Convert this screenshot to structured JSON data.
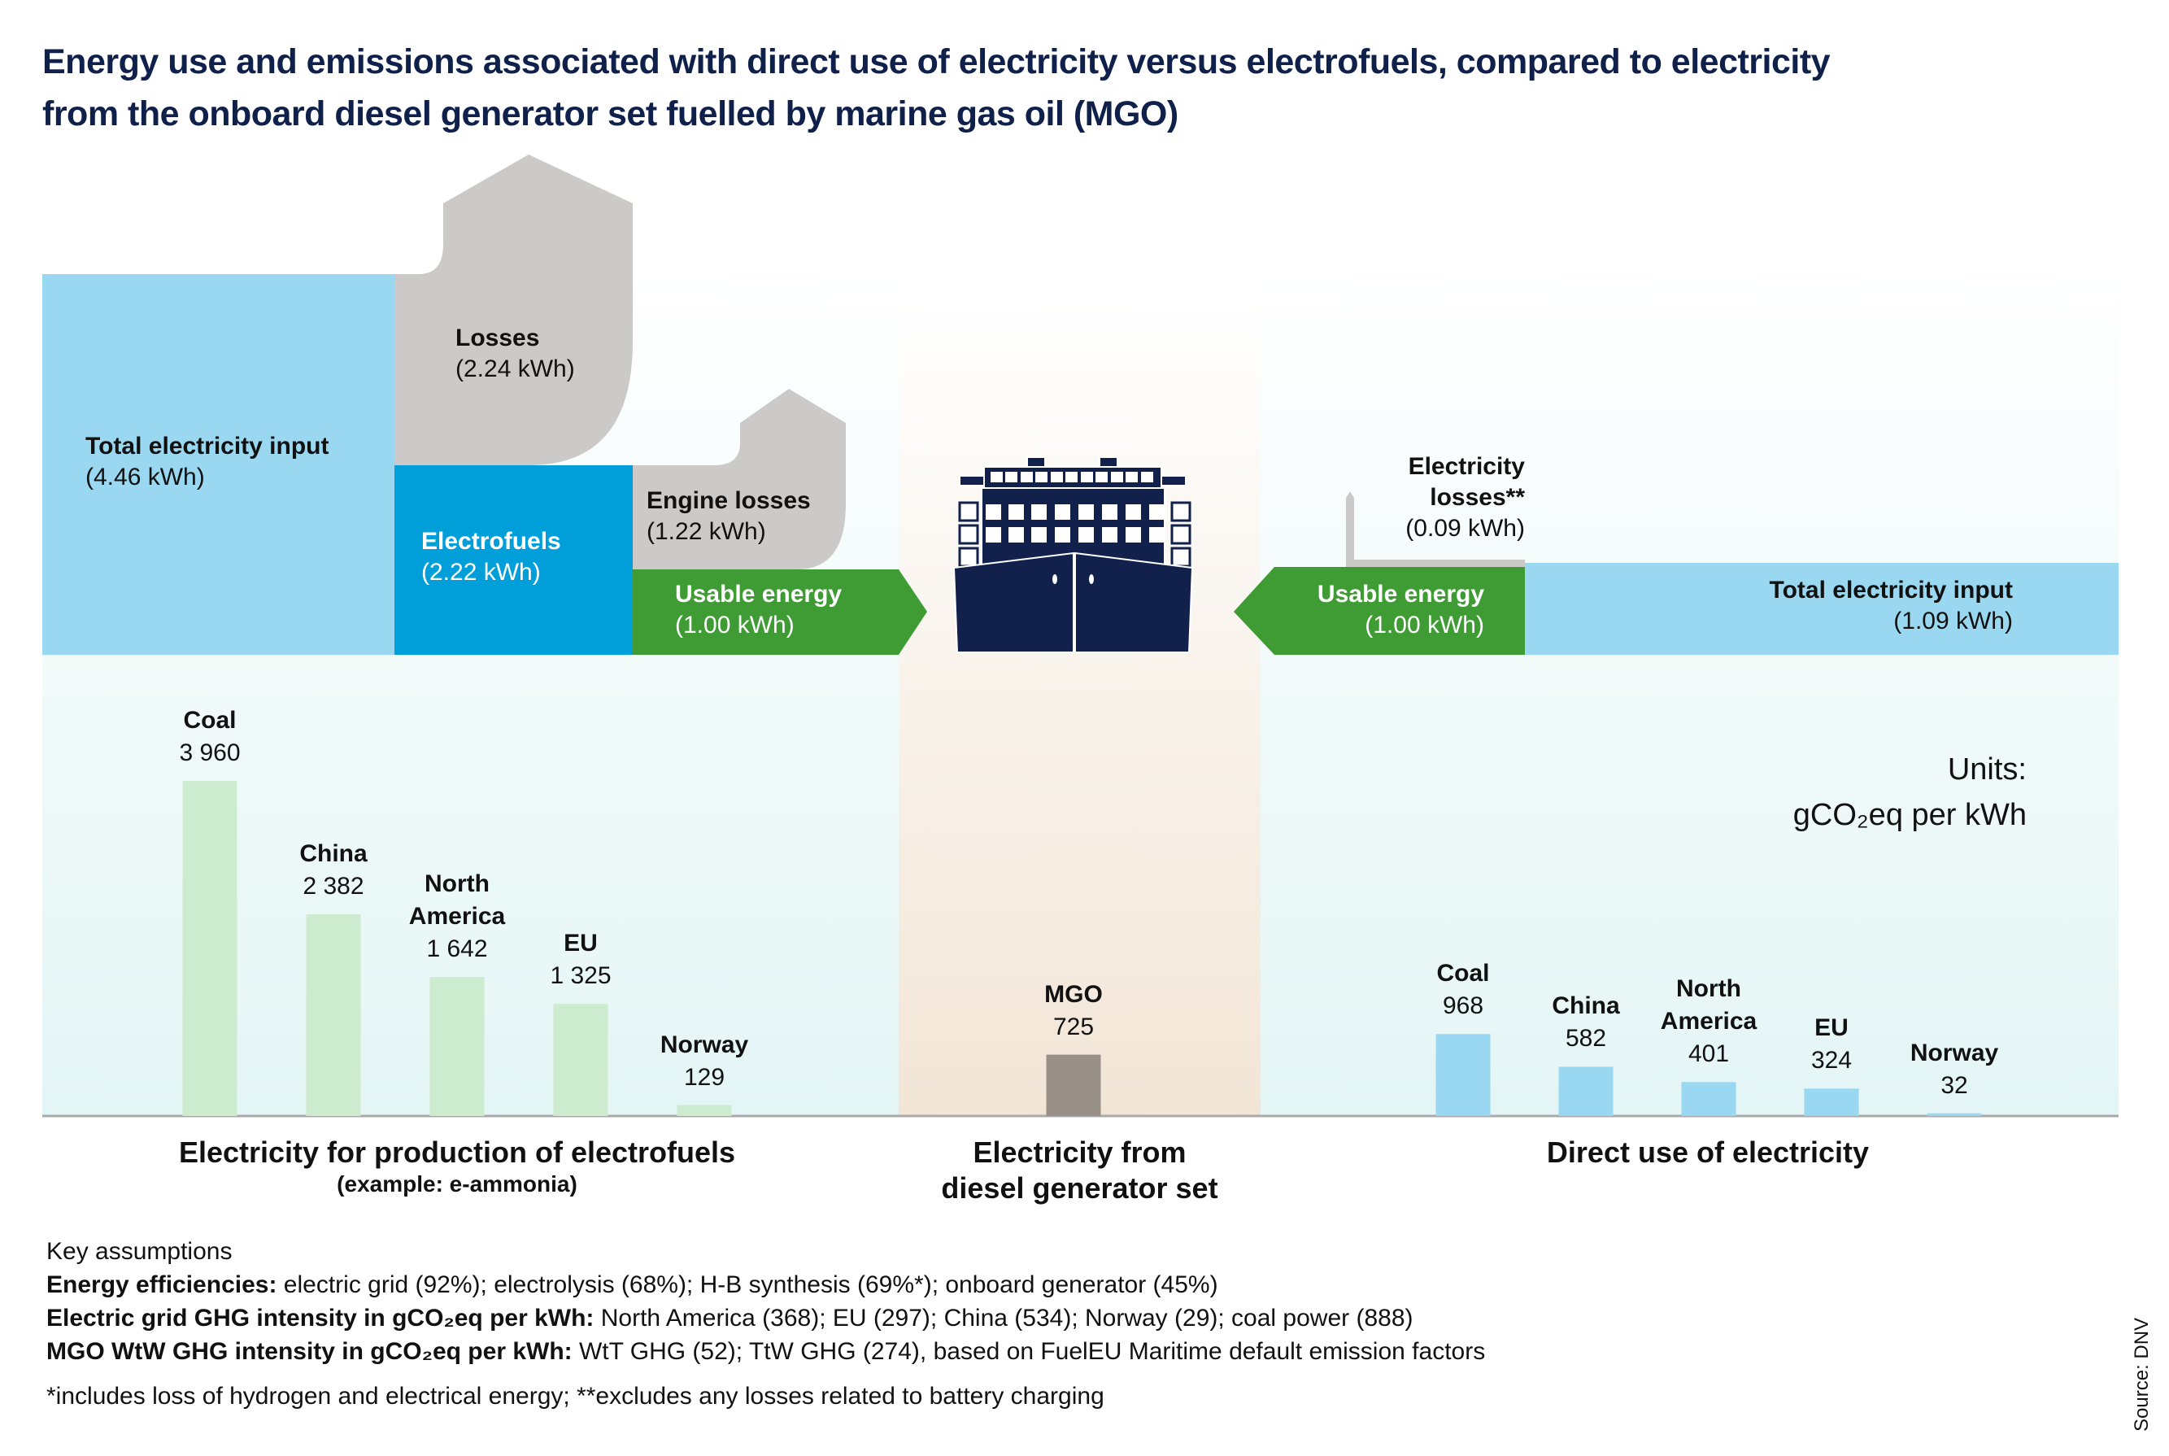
{
  "title": {
    "line1": "Energy use and emissions associated with direct use of electricity versus electrofuels, compared to electricity",
    "line2": "from the onboard diesel generator set fuelled by marine gas oil (MGO)"
  },
  "colors": {
    "navy": "#0f204b",
    "light_blue": "#99d8f0",
    "mid_blue": "#009fda",
    "gray_loss": "#cbcac8",
    "green": "#3f9c35",
    "electrofuel_bar": "#cdebcf",
    "direct_bar": "#99d8f0",
    "mgo_bar": "#988f86",
    "panel_blue": "#e6f6f6",
    "panel_beige": "#f3e6d8"
  },
  "flow": {
    "electrofuels_path": {
      "total_input": {
        "label": "Total electricity input",
        "value": "(4.46 kWh)",
        "kwh": 4.46
      },
      "losses": {
        "label": "Losses",
        "value": "(2.24 kWh)",
        "kwh": 2.24
      },
      "electrofuels": {
        "label": "Electrofuels",
        "value": "(2.22 kWh)",
        "kwh": 2.22
      },
      "engine_losses": {
        "label": "Engine losses",
        "value": "(1.22 kWh)",
        "kwh": 1.22
      },
      "usable": {
        "label": "Usable energy",
        "value": "(1.00 kWh)",
        "kwh": 1.0
      }
    },
    "direct_path": {
      "losses": {
        "label_line1": "Electricity",
        "label_line2": "losses**",
        "value": "(0.09 kWh)",
        "kwh": 0.09
      },
      "usable": {
        "label": "Usable energy",
        "value": "(1.00 kWh)",
        "kwh": 1.0
      },
      "total_input": {
        "label": "Total electricity input",
        "value": "(1.09 kWh)",
        "kwh": 1.09
      }
    },
    "ship_icon": "container-ship-icon"
  },
  "units": {
    "line1": "Units:",
    "line2": "gCO₂eq per kWh"
  },
  "chart_data": {
    "type": "bar",
    "title": "Energy use and emissions associated with direct use of electricity versus electrofuels, compared to electricity from the onboard diesel generator set fuelled by marine gas oil (MGO)",
    "ylabel": "gCO₂eq per kWh",
    "ylim": [
      0,
      4000
    ],
    "grid": false,
    "groups": [
      {
        "name": "Electricity for production of electrofuels",
        "subtitle": "(example: e-ammonia)",
        "color": "#cdebcf",
        "categories": [
          "Coal",
          "China",
          "North America",
          "EU",
          "Norway"
        ],
        "labels": [
          "3 960",
          "2 382",
          "1 642",
          "1 325",
          "129"
        ],
        "values": [
          3960,
          2382,
          1642,
          1325,
          129
        ]
      },
      {
        "name_line1": "Electricity from",
        "name_line2": "diesel generator set",
        "color": "#988f86",
        "categories": [
          "MGO"
        ],
        "labels": [
          "725"
        ],
        "values": [
          725
        ]
      },
      {
        "name": "Direct use of electricity",
        "color": "#99d8f0",
        "categories": [
          "Coal",
          "China",
          "North America",
          "EU",
          "Norway"
        ],
        "labels": [
          "968",
          "582",
          "401",
          "324",
          "32"
        ],
        "values": [
          968,
          582,
          401,
          324,
          32
        ]
      }
    ]
  },
  "notes": {
    "heading": "Key assumptions",
    "rows": [
      {
        "bold": "Energy efficiencies:",
        "text": " electric grid (92%); electrolysis (68%); H-B synthesis (69%*); onboard generator (45%)"
      },
      {
        "bold": "Electric grid GHG intensity in gCO₂eq per kWh:",
        "text": " North America (368); EU (297); China (534); Norway (29); coal power (888)"
      },
      {
        "bold": "MGO WtW GHG intensity in gCO₂eq per kWh:",
        "text": " WtT GHG (52); TtW GHG (274), based on FuelEU Maritime default emission factors"
      }
    ],
    "footnote": "*includes loss of hydrogen and electrical energy; **excludes any losses related to battery charging",
    "source": "Source: DNV"
  }
}
